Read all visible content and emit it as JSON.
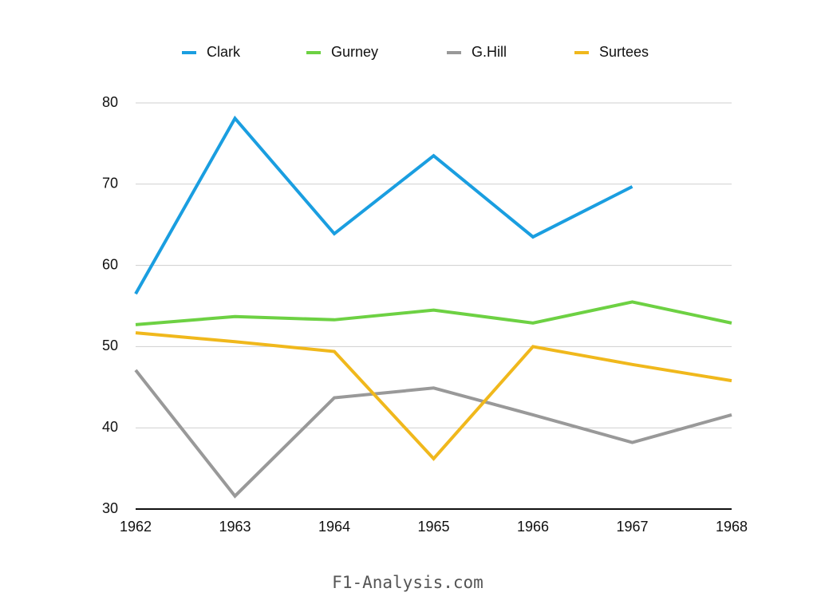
{
  "chart_data": {
    "type": "line",
    "x": [
      1962,
      1963,
      1964,
      1965,
      1966,
      1967,
      1968
    ],
    "series": [
      {
        "name": "Clark",
        "color": "#1a9ee0",
        "values": [
          56.5,
          78.1,
          63.9,
          73.5,
          63.5,
          69.7,
          null
        ]
      },
      {
        "name": "Gurney",
        "color": "#6dd143",
        "values": [
          52.7,
          53.7,
          53.3,
          54.5,
          52.9,
          55.5,
          52.9
        ]
      },
      {
        "name": "G.Hill",
        "color": "#999999",
        "values": [
          47.1,
          31.6,
          43.7,
          44.9,
          41.6,
          38.2,
          41.6
        ]
      },
      {
        "name": "Surtees",
        "color": "#f0b81c",
        "values": [
          51.7,
          50.6,
          49.4,
          36.2,
          50.0,
          47.8,
          45.8
        ]
      }
    ],
    "xlim": [
      1962,
      1968
    ],
    "xticks": [
      1962,
      1963,
      1964,
      1965,
      1966,
      1967,
      1968
    ],
    "ylim": [
      30,
      80
    ],
    "yticks": [
      30,
      40,
      50,
      60,
      70,
      80
    ],
    "grid": true,
    "legend": "top",
    "source": "F1-Analysis.com"
  }
}
